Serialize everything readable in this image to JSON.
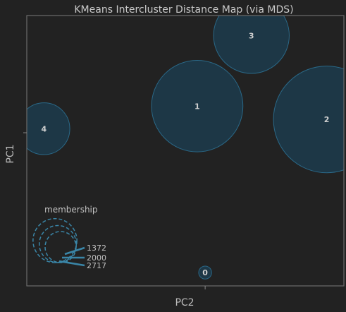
{
  "chart_data": {
    "type": "scatter",
    "title": "KMeans Intercluster Distance Map (via MDS)",
    "xlabel": "PC2",
    "ylabel": "PC1",
    "colors": {
      "background": "#222222",
      "frame": "#6b6b6b",
      "bubble_fill": "#1d3a4a",
      "bubble_edge": "#2a6887",
      "legend_stroke": "#3a86a8"
    },
    "clusters": [
      {
        "label": "0",
        "x": 0.0,
        "y": -1.05,
        "size": 40
      },
      {
        "label": "1",
        "x": -0.06,
        "y": 0.2,
        "size": 2000
      },
      {
        "label": "2",
        "x": 0.92,
        "y": 0.1,
        "size": 2717
      },
      {
        "label": "3",
        "x": 0.35,
        "y": 0.73,
        "size": 1372
      },
      {
        "label": "4",
        "x": -1.22,
        "y": 0.03,
        "size": 640
      }
    ],
    "membership_legend": {
      "title": "membership",
      "values": [
        1372,
        2000,
        2717
      ]
    },
    "xlim": [
      -1.35,
      1.05
    ],
    "ylim": [
      -1.15,
      0.88
    ],
    "xticks": [
      0
    ],
    "yticks": [
      0
    ],
    "grid": false
  }
}
